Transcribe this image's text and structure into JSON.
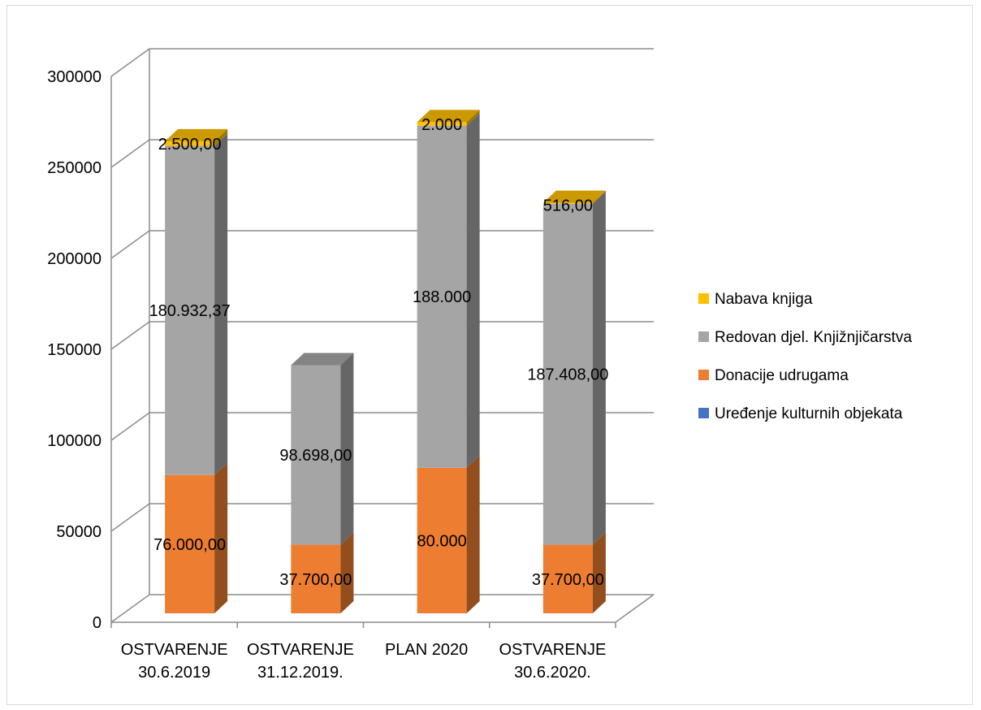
{
  "chart_data": {
    "type": "bar",
    "stacked": true,
    "style": "3d-stacked-column",
    "categories": [
      [
        "OSTVARENJE",
        "30.6.2019"
      ],
      [
        "OSTVARENJE",
        "31.12.2019."
      ],
      [
        "PLAN 2020"
      ],
      [
        "OSTVARENJE",
        "30.6.2020."
      ]
    ],
    "series": [
      {
        "name": "Uređenje kulturnih objekata",
        "color": "#4472c4",
        "values": [
          0,
          0,
          0,
          0
        ],
        "labels": [
          "",
          "",
          "",
          ""
        ]
      },
      {
        "name": "Donacije udrugama",
        "color": "#ed7d31",
        "values": [
          76000,
          37700,
          80000,
          37700
        ],
        "labels": [
          "76.000,00",
          "37.700,00",
          "80.000",
          "37.700,00"
        ]
      },
      {
        "name": "Redovan djel. Knjižnjičarstva",
        "color": "#a5a5a5",
        "values": [
          180932.37,
          98698,
          188000,
          187408
        ],
        "labels": [
          "180.932,37",
          "98.698,00",
          "188.000",
          "187.408,00"
        ]
      },
      {
        "name": "Nabava knjiga",
        "color": "#ffc000",
        "values": [
          2500,
          0,
          2000,
          516
        ],
        "labels": [
          "2.500,00",
          "",
          "2.000",
          "516,00"
        ]
      }
    ],
    "legend_order": [
      "Nabava knjiga",
      "Redovan djel. Knjižnjičarstva",
      "Donacije udrugama",
      "Uređenje kulturnih objekata"
    ],
    "ylim": [
      0,
      300000
    ],
    "yticks": [
      "0",
      "50000",
      "100000",
      "150000",
      "200000",
      "250000",
      "300000"
    ],
    "grid": true,
    "legend_position": "right"
  }
}
